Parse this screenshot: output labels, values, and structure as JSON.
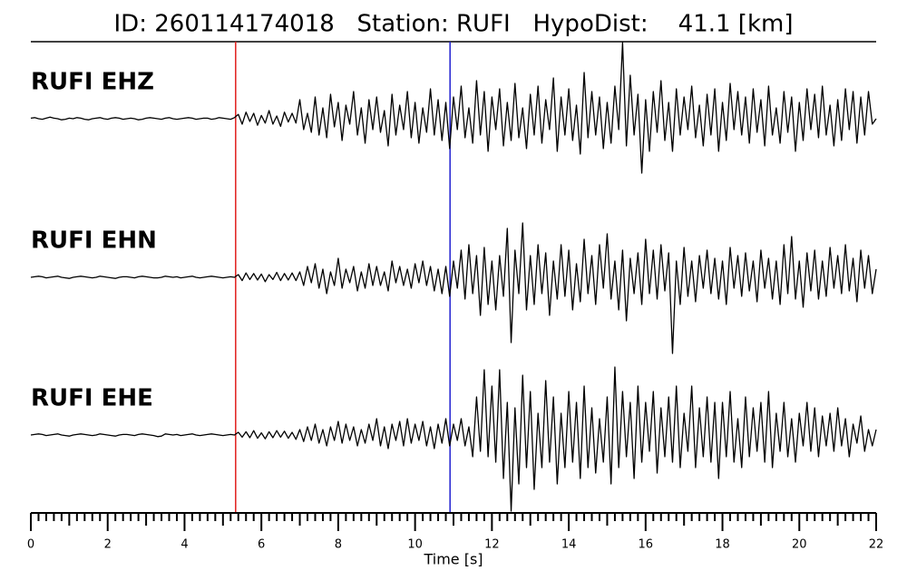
{
  "chart_data": {
    "type": "seismogram",
    "title": "ID: 260114174018   Station: RUFI   HypoDist:    41.1 [km]",
    "xlabel": "Time [s]",
    "xlim": [
      0,
      22
    ],
    "xticks": [
      0,
      2,
      4,
      6,
      8,
      10,
      12,
      14,
      16,
      18,
      20,
      22
    ],
    "minor_tick_step": 0.2,
    "ylim": [
      -1.45,
      1.45
    ],
    "label_color": "#4c9a0c",
    "picks": [
      {
        "value": 5.33,
        "color": "#e0201e"
      },
      {
        "value": 10.91,
        "color": "#1f1fd0"
      }
    ],
    "x": [
      0,
      0.1,
      0.2,
      0.3,
      0.4,
      0.5,
      0.6,
      0.7,
      0.8,
      0.9,
      1,
      1.1,
      1.2,
      1.3,
      1.4,
      1.5,
      1.6,
      1.7,
      1.8,
      1.9,
      2,
      2.1,
      2.2,
      2.3,
      2.4,
      2.5,
      2.6,
      2.7,
      2.8,
      2.9,
      3,
      3.1,
      3.2,
      3.3,
      3.4,
      3.5,
      3.6,
      3.7,
      3.8,
      3.9,
      4,
      4.1,
      4.2,
      4.3,
      4.4,
      4.5,
      4.6,
      4.7,
      4.8,
      4.9,
      5,
      5.1,
      5.2,
      5.3,
      5.4,
      5.5,
      5.6,
      5.7,
      5.8,
      5.9,
      6,
      6.1,
      6.2,
      6.3,
      6.4,
      6.5,
      6.6,
      6.7,
      6.8,
      6.9,
      7,
      7.1,
      7.2,
      7.3,
      7.4,
      7.5,
      7.6,
      7.7,
      7.8,
      7.9,
      8,
      8.1,
      8.2,
      8.3,
      8.4,
      8.5,
      8.6,
      8.7,
      8.8,
      8.9,
      9,
      9.1,
      9.2,
      9.3,
      9.4,
      9.5,
      9.6,
      9.7,
      9.8,
      9.9,
      10,
      10.1,
      10.2,
      10.3,
      10.4,
      10.5,
      10.6,
      10.7,
      10.8,
      10.9,
      11,
      11.1,
      11.2,
      11.3,
      11.4,
      11.5,
      11.6,
      11.7,
      11.8,
      11.9,
      12,
      12.1,
      12.2,
      12.3,
      12.4,
      12.5,
      12.6,
      12.7,
      12.8,
      12.9,
      13,
      13.1,
      13.2,
      13.3,
      13.4,
      13.5,
      13.6,
      13.7,
      13.8,
      13.9,
      14,
      14.1,
      14.2,
      14.3,
      14.4,
      14.5,
      14.6,
      14.7,
      14.8,
      14.9,
      15,
      15.1,
      15.2,
      15.3,
      15.4,
      15.5,
      15.6,
      15.7,
      15.8,
      15.9,
      16,
      16.1,
      16.2,
      16.3,
      16.4,
      16.5,
      16.6,
      16.7,
      16.8,
      16.9,
      17,
      17.1,
      17.2,
      17.3,
      17.4,
      17.5,
      17.6,
      17.7,
      17.8,
      17.9,
      18,
      18.1,
      18.2,
      18.3,
      18.4,
      18.5,
      18.6,
      18.7,
      18.8,
      18.9,
      19,
      19.1,
      19.2,
      19.3,
      19.4,
      19.5,
      19.6,
      19.7,
      19.8,
      19.9,
      20,
      20.1,
      20.2,
      20.3,
      20.4,
      20.5,
      20.6,
      20.7,
      20.8,
      20.9,
      21,
      21.1,
      21.2,
      21.3,
      21.4,
      21.5,
      21.6,
      21.7,
      21.8,
      21.9,
      22
    ],
    "series": [
      {
        "name": "RUFI EHZ",
        "color": "#000000",
        "values": [
          0.01,
          0.02,
          0,
          -0.01,
          0.01,
          0.03,
          0.01,
          0,
          -0.02,
          -0.01,
          0.01,
          0,
          0.02,
          0.01,
          -0.01,
          -0.02,
          0,
          0.01,
          0.02,
          0,
          -0.01,
          0.01,
          0.02,
          0.01,
          -0.01,
          0,
          0.01,
          0,
          -0.02,
          -0.01,
          0.01,
          0.02,
          0.01,
          0,
          -0.01,
          0.01,
          0.02,
          0,
          -0.01,
          0,
          0.01,
          0.02,
          0.01,
          -0.01,
          0,
          0.01,
          0.01,
          -0.01,
          0,
          0.02,
          0.01,
          0,
          -0.01,
          0.02,
          0.08,
          -0.1,
          0.12,
          -0.05,
          0.1,
          -0.12,
          0.06,
          -0.08,
          0.15,
          -0.1,
          0.05,
          -0.14,
          0.12,
          -0.06,
          0.1,
          -0.08,
          0.35,
          -0.2,
          0.1,
          -0.25,
          0.4,
          -0.3,
          0.2,
          -0.35,
          0.45,
          -0.15,
          0.3,
          -0.4,
          0.25,
          -0.1,
          0.5,
          -0.3,
          0.2,
          -0.45,
          0.35,
          -0.2,
          0.4,
          -0.25,
          0.15,
          -0.5,
          0.45,
          -0.3,
          0.25,
          -0.2,
          0.5,
          -0.35,
          0.3,
          -0.45,
          0.2,
          -0.25,
          0.55,
          -0.3,
          0.35,
          -0.4,
          0.3,
          -0.55,
          0.4,
          -0.2,
          0.6,
          -0.35,
          0.2,
          -0.45,
          0.7,
          -0.3,
          0.5,
          -0.6,
          0.4,
          -0.2,
          0.55,
          -0.5,
          0.3,
          -0.4,
          0.65,
          -0.35,
          0.2,
          -0.55,
          0.45,
          -0.3,
          0.6,
          -0.45,
          0.35,
          -0.2,
          0.75,
          -0.6,
          0.4,
          -0.3,
          0.55,
          -0.4,
          0.25,
          -0.65,
          0.85,
          -0.35,
          0.5,
          -0.3,
          0.4,
          -0.55,
          0.3,
          -0.45,
          0.6,
          -0.2,
          1.4,
          -0.5,
          0.8,
          -0.3,
          0.45,
          -1.0,
          0.35,
          -0.6,
          0.5,
          -0.25,
          0.7,
          -0.4,
          0.3,
          -0.6,
          0.55,
          -0.3,
          0.4,
          -0.2,
          0.6,
          -0.35,
          0.25,
          -0.5,
          0.45,
          -0.3,
          0.55,
          -0.6,
          0.3,
          -0.4,
          0.65,
          -0.2,
          0.5,
          -0.3,
          0.4,
          -0.45,
          0.55,
          -0.25,
          0.35,
          -0.5,
          0.6,
          -0.3,
          0.2,
          -0.45,
          0.5,
          -0.25,
          0.4,
          -0.6,
          0.3,
          -0.4,
          0.55,
          -0.2,
          0.45,
          -0.35,
          0.6,
          -0.3,
          0.25,
          -0.5,
          0.35,
          -0.4,
          0.55,
          -0.2,
          0.5,
          -0.45,
          0.4,
          -0.3,
          0.5,
          -0.1,
          0.0
        ]
      },
      {
        "name": "RUFI EHN",
        "color": "#000000",
        "values": [
          0,
          0.01,
          0.02,
          0.01,
          -0.01,
          0,
          0.01,
          0.02,
          0,
          -0.01,
          -0.02,
          0,
          0.01,
          0.02,
          0.01,
          0,
          -0.01,
          0,
          0.02,
          0.01,
          0,
          -0.01,
          -0.02,
          0,
          0.01,
          0.01,
          0,
          -0.01,
          0.01,
          0.02,
          0.01,
          0,
          -0.01,
          -0.01,
          0,
          0.02,
          0.01,
          0,
          0.01,
          -0.01,
          0,
          0.01,
          0.02,
          0,
          -0.01,
          0,
          0.01,
          0.02,
          0.01,
          0,
          -0.01,
          0,
          0.01,
          0,
          0.05,
          -0.06,
          0.08,
          -0.04,
          0.07,
          -0.05,
          0.06,
          -0.08,
          0.05,
          -0.04,
          0.09,
          -0.06,
          0.07,
          -0.05,
          0.08,
          -0.06,
          0.1,
          -0.15,
          0.2,
          -0.1,
          0.25,
          -0.2,
          0.15,
          -0.3,
          0.1,
          -0.15,
          0.35,
          -0.2,
          0.15,
          -0.1,
          0.2,
          -0.25,
          0.1,
          -0.2,
          0.25,
          -0.15,
          0.2,
          -0.15,
          0.1,
          -0.25,
          0.3,
          -0.1,
          0.2,
          -0.15,
          0.15,
          -0.2,
          0.25,
          -0.1,
          0.3,
          -0.15,
          0.2,
          -0.25,
          0.15,
          -0.3,
          0.2,
          -0.35,
          0.3,
          -0.2,
          0.5,
          -0.4,
          0.6,
          -0.3,
          0.4,
          -0.7,
          0.55,
          -0.5,
          0.3,
          -0.6,
          0.4,
          -0.35,
          0.9,
          -1.2,
          0.5,
          -0.3,
          1.0,
          -0.6,
          0.4,
          -0.5,
          0.6,
          -0.3,
          0.45,
          -0.7,
          0.3,
          -0.4,
          0.6,
          -0.35,
          0.5,
          -0.6,
          0.25,
          -0.45,
          0.7,
          -0.3,
          0.4,
          -0.5,
          0.6,
          -0.2,
          0.8,
          -0.4,
          0.3,
          -0.6,
          0.5,
          -0.8,
          0.35,
          -0.3,
          0.45,
          -0.5,
          0.7,
          -0.3,
          0.5,
          -0.4,
          0.6,
          -0.25,
          0.45,
          -1.4,
          0.3,
          -0.5,
          0.55,
          -0.35,
          0.3,
          -0.45,
          0.4,
          -0.2,
          0.5,
          -0.3,
          0.35,
          -0.4,
          0.3,
          -0.5,
          0.55,
          -0.2,
          0.4,
          -0.35,
          0.45,
          -0.25,
          0.3,
          -0.45,
          0.5,
          -0.2,
          0.35,
          -0.4,
          0.3,
          -0.5,
          0.6,
          -0.3,
          0.75,
          -0.4,
          0.3,
          -0.55,
          0.45,
          -0.25,
          0.5,
          -0.4,
          0.3,
          -0.35,
          0.55,
          -0.2,
          0.4,
          -0.3,
          0.6,
          -0.25,
          0.35,
          -0.45,
          0.5,
          -0.2,
          0.4,
          -0.3,
          0.15
        ]
      },
      {
        "name": "RUFI EHE",
        "color": "#000000",
        "values": [
          0,
          0.01,
          0.02,
          0.01,
          -0.01,
          0,
          0.01,
          0.02,
          0,
          -0.01,
          -0.02,
          0,
          0.01,
          0.02,
          0.01,
          0,
          -0.01,
          0,
          0.02,
          0.01,
          0,
          -0.01,
          -0.02,
          0,
          0.01,
          0.01,
          0,
          -0.01,
          0.01,
          0.02,
          0.01,
          0,
          -0.01,
          -0.03,
          -0.02,
          0.02,
          0.01,
          0,
          0.01,
          -0.01,
          0,
          0.01,
          0.02,
          0,
          -0.01,
          0,
          0.01,
          0.02,
          0.01,
          0,
          -0.01,
          0,
          0.01,
          0,
          0.05,
          -0.04,
          0.06,
          -0.05,
          0.08,
          -0.06,
          0.04,
          -0.07,
          0.06,
          -0.05,
          0.08,
          -0.04,
          0.07,
          -0.06,
          0.05,
          -0.08,
          0.1,
          -0.12,
          0.15,
          -0.1,
          0.2,
          -0.15,
          0.1,
          -0.2,
          0.15,
          -0.1,
          0.25,
          -0.15,
          0.2,
          -0.1,
          0.15,
          -0.2,
          0.1,
          -0.15,
          0.2,
          -0.1,
          0.3,
          -0.2,
          0.15,
          -0.25,
          0.2,
          -0.1,
          0.25,
          -0.2,
          0.3,
          -0.15,
          0.2,
          -0.1,
          0.25,
          -0.2,
          0.15,
          -0.25,
          0.2,
          -0.15,
          0.3,
          -0.2,
          0.2,
          -0.1,
          0.3,
          -0.2,
          0.15,
          -0.4,
          0.7,
          -0.3,
          1.2,
          -0.4,
          0.9,
          -0.5,
          1.2,
          -0.8,
          0.6,
          -1.4,
          0.5,
          -0.9,
          1.1,
          -0.6,
          0.8,
          -1.0,
          0.4,
          -0.6,
          1.0,
          -0.5,
          0.7,
          -0.9,
          0.4,
          -0.6,
          0.8,
          -0.5,
          0.6,
          -0.8,
          0.9,
          -0.6,
          0.5,
          -0.7,
          0.3,
          -0.5,
          0.7,
          -0.9,
          1.25,
          -0.6,
          0.8,
          -0.4,
          0.6,
          -0.8,
          0.9,
          -0.5,
          0.6,
          -0.3,
          0.8,
          -0.7,
          0.5,
          -0.4,
          0.7,
          -0.5,
          0.9,
          -0.6,
          0.4,
          -0.3,
          0.9,
          -0.6,
          0.5,
          -0.4,
          0.7,
          -0.5,
          0.6,
          -0.8,
          0.6,
          -0.4,
          0.8,
          -0.5,
          0.3,
          -0.6,
          0.7,
          -0.4,
          0.5,
          -0.3,
          0.6,
          -0.5,
          0.8,
          -0.6,
          0.4,
          -0.3,
          0.6,
          -0.4,
          0.3,
          -0.5,
          0.4,
          -0.2,
          0.6,
          -0.3,
          0.5,
          -0.4,
          0.35,
          -0.2,
          0.4,
          -0.3,
          0.5,
          -0.2,
          0.3,
          -0.4,
          0.2,
          -0.15,
          0.35,
          -0.3,
          0.1,
          -0.2,
          0.1
        ]
      }
    ]
  }
}
